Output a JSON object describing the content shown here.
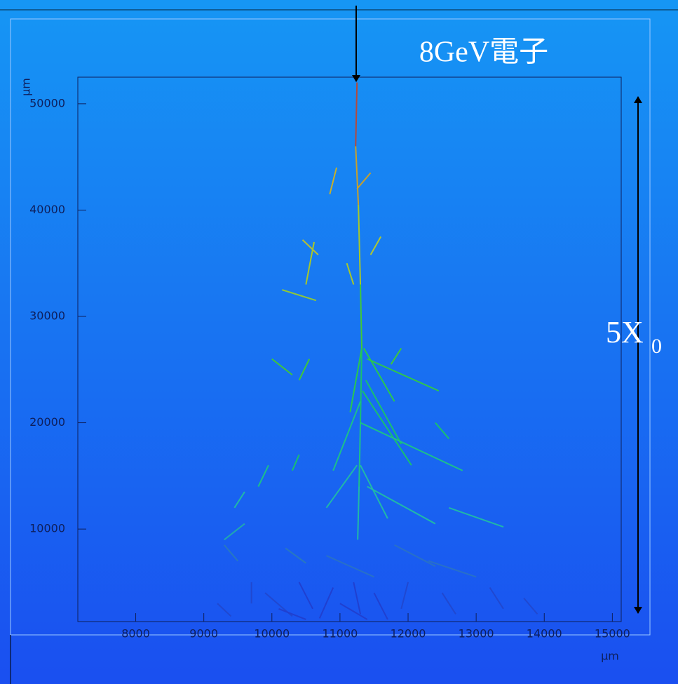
{
  "chart_data": {
    "type": "segments",
    "title": "8GeV電子",
    "depth_label": "5X",
    "depth_label_subscript": "0",
    "x_label": "μm",
    "y_label": "μm",
    "xlim": [
      7150,
      15130
    ],
    "ylim": [
      1300,
      52500
    ],
    "xticks": [
      8000,
      9000,
      10000,
      11000,
      12000,
      13000,
      14000,
      15000
    ],
    "yticks": [
      10000,
      20000,
      30000,
      40000,
      50000
    ],
    "segments": [
      {
        "x": [
          11250,
          11230
        ],
        "y": [
          52000,
          46000
        ],
        "color": "#b44a3c"
      },
      {
        "x": [
          11230,
          11270
        ],
        "y": [
          46000,
          40500
        ],
        "color": "#c8a02a"
      },
      {
        "x": [
          11270,
          11300
        ],
        "y": [
          40500,
          33000
        ],
        "color": "#a8c828"
      },
      {
        "x": [
          11300,
          11320
        ],
        "y": [
          33000,
          27000
        ],
        "color": "#40c838"
      },
      {
        "x": [
          11320,
          11300
        ],
        "y": [
          27000,
          20000
        ],
        "color": "#18c070"
      },
      {
        "x": [
          11300,
          11280
        ],
        "y": [
          20000,
          14000
        ],
        "color": "#1cc08a"
      },
      {
        "x": [
          11280,
          11260
        ],
        "y": [
          14000,
          9000
        ],
        "color": "#20b8a8"
      },
      {
        "x": [
          11320,
          11150
        ],
        "y": [
          27000,
          21000
        ],
        "color": "#28c850"
      },
      {
        "x": [
          11350,
          11800
        ],
        "y": [
          27000,
          22000
        ],
        "color": "#28c850"
      },
      {
        "x": [
          11400,
          12450
        ],
        "y": [
          26000,
          23000
        ],
        "color": "#30c848"
      },
      {
        "x": [
          11380,
          11900
        ],
        "y": [
          24000,
          18000
        ],
        "color": "#18c070"
      },
      {
        "x": [
          11330,
          12050
        ],
        "y": [
          23000,
          16000
        ],
        "color": "#18c070"
      },
      {
        "x": [
          11300,
          12800
        ],
        "y": [
          20000,
          15500
        ],
        "color": "#1cc08a"
      },
      {
        "x": [
          11300,
          10900
        ],
        "y": [
          22000,
          15500
        ],
        "color": "#1cc08a"
      },
      {
        "x": [
          11250,
          10800
        ],
        "y": [
          16000,
          12000
        ],
        "color": "#20b8a8"
      },
      {
        "x": [
          11300,
          11700
        ],
        "y": [
          16000,
          11000
        ],
        "color": "#20b8a8"
      },
      {
        "x": [
          11400,
          12400
        ],
        "y": [
          14000,
          10500
        ],
        "color": "#20b8a8"
      },
      {
        "x": [
          12600,
          13400
        ],
        "y": [
          12000,
          10200
        ],
        "color": "#20b8a8"
      },
      {
        "x": [
          11100,
          11200
        ],
        "y": [
          35000,
          33000
        ],
        "color": "#a8c828"
      },
      {
        "x": [
          10450,
          10680
        ],
        "y": [
          37200,
          35800
        ],
        "color": "#b8c030"
      },
      {
        "x": [
          10620,
          10500
        ],
        "y": [
          37000,
          33000
        ],
        "color": "#a8c828"
      },
      {
        "x": [
          10150,
          10650
        ],
        "y": [
          32500,
          31500
        ],
        "color": "#90c838"
      },
      {
        "x": [
          11600,
          11450
        ],
        "y": [
          37500,
          35800
        ],
        "color": "#b0c830"
      },
      {
        "x": [
          10950,
          10850
        ],
        "y": [
          44000,
          41500
        ],
        "color": "#c8b028"
      },
      {
        "x": [
          11250,
          11450
        ],
        "y": [
          42000,
          43500
        ],
        "color": "#c8a02a"
      },
      {
        "x": [
          10000,
          10300
        ],
        "y": [
          26000,
          24500
        ],
        "color": "#40c838"
      },
      {
        "x": [
          10550,
          10400
        ],
        "y": [
          26000,
          24000
        ],
        "color": "#40c838"
      },
      {
        "x": [
          11900,
          11750
        ],
        "y": [
          27000,
          25500
        ],
        "color": "#40c838"
      },
      {
        "x": [
          12400,
          12600
        ],
        "y": [
          20000,
          18500
        ],
        "color": "#18c070"
      },
      {
        "x": [
          10400,
          10300
        ],
        "y": [
          17000,
          15500
        ],
        "color": "#18c070"
      },
      {
        "x": [
          9950,
          9800
        ],
        "y": [
          16000,
          14000
        ],
        "color": "#1cc08a"
      },
      {
        "x": [
          9600,
          9450
        ],
        "y": [
          13500,
          12000
        ],
        "color": "#20b8a8"
      },
      {
        "x": [
          9600,
          9300
        ],
        "y": [
          10500,
          9000
        ],
        "color": "#20a8b0"
      },
      {
        "x": [
          9300,
          9500
        ],
        "y": [
          8500,
          7000
        ],
        "color": "#2878c0"
      },
      {
        "x": [
          10200,
          10500
        ],
        "y": [
          8200,
          6800
        ],
        "color": "#2878c0"
      },
      {
        "x": [
          12300,
          13000
        ],
        "y": [
          7000,
          5500
        ],
        "color": "#2870c8"
      },
      {
        "x": [
          10800,
          11500
        ],
        "y": [
          7500,
          5500
        ],
        "color": "#2870c8"
      },
      {
        "x": [
          11800,
          12400
        ],
        "y": [
          8500,
          6500
        ],
        "color": "#2870c8"
      },
      {
        "x": [
          9700,
          9700
        ],
        "y": [
          5000,
          3000
        ],
        "color": "#2048d0"
      },
      {
        "x": [
          9900,
          10300
        ],
        "y": [
          4000,
          1800
        ],
        "color": "#2048d0"
      },
      {
        "x": [
          10400,
          10600
        ],
        "y": [
          5000,
          2500
        ],
        "color": "#2040d0"
      },
      {
        "x": [
          10900,
          10700
        ],
        "y": [
          4500,
          1600
        ],
        "color": "#2040d0"
      },
      {
        "x": [
          11200,
          11300
        ],
        "y": [
          5000,
          2000
        ],
        "color": "#2040d0"
      },
      {
        "x": [
          11500,
          11700
        ],
        "y": [
          4000,
          1500
        ],
        "color": "#2040d0"
      },
      {
        "x": [
          12000,
          11900
        ],
        "y": [
          5000,
          2500
        ],
        "color": "#2048d0"
      },
      {
        "x": [
          12500,
          12700
        ],
        "y": [
          4000,
          2000
        ],
        "color": "#2048d0"
      },
      {
        "x": [
          13200,
          13400
        ],
        "y": [
          4500,
          2500
        ],
        "color": "#2048d0"
      },
      {
        "x": [
          13700,
          13900
        ],
        "y": [
          3500,
          2000
        ],
        "color": "#2048d0"
      },
      {
        "x": [
          9200,
          9400
        ],
        "y": [
          3000,
          1800
        ],
        "color": "#2048d0"
      },
      {
        "x": [
          10100,
          10500
        ],
        "y": [
          2500,
          1500
        ],
        "color": "#2040d0"
      },
      {
        "x": [
          11000,
          11400
        ],
        "y": [
          3000,
          1500
        ],
        "color": "#2040d0"
      }
    ]
  }
}
